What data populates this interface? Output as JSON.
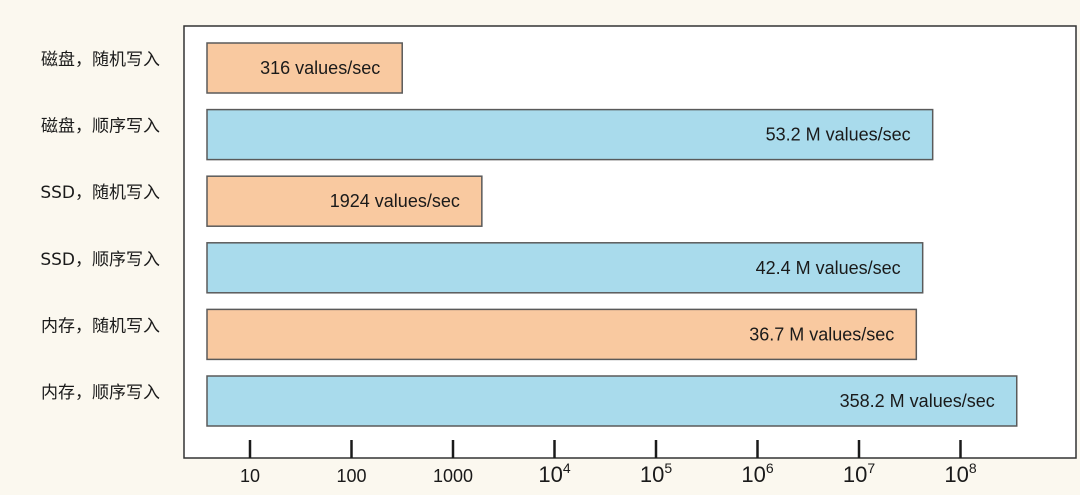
{
  "chart_data": {
    "type": "bar",
    "orientation": "horizontal",
    "x_scale": "log",
    "categories": [
      "磁盘，随机写入",
      "磁盘，顺序写入",
      "SSD，随机写入",
      "SSD，顺序写入",
      "内存，随机写入",
      "内存，顺序写入"
    ],
    "values": [
      316,
      53200000,
      1924,
      42400000,
      36700000,
      358200000
    ],
    "value_labels": [
      "316 values/sec",
      "53.2 M values/sec",
      "1924 values/sec",
      "42.4 M values/sec",
      "36.7 M values/sec",
      "358.2 M values/sec"
    ],
    "bar_colors": [
      "#f9c9a0",
      "#a9dbec",
      "#f9c9a0",
      "#a9dbec",
      "#f9c9a0",
      "#a9dbec"
    ],
    "bar_stroke": "#5a5a5a",
    "xticks": [
      {
        "value": 10,
        "base": "10",
        "exp": ""
      },
      {
        "value": 100,
        "base": "100",
        "exp": ""
      },
      {
        "value": 1000,
        "base": "1000",
        "exp": ""
      },
      {
        "value": 10000,
        "base": "10",
        "exp": "4"
      },
      {
        "value": 100000,
        "base": "10",
        "exp": "5"
      },
      {
        "value": 1000000,
        "base": "10",
        "exp": "6"
      },
      {
        "value": 10000000,
        "base": "10",
        "exp": "7"
      },
      {
        "value": 100000000,
        "base": "10",
        "exp": "8"
      }
    ],
    "title": "",
    "xlabel": "",
    "ylabel": "",
    "grid": false,
    "legend": "none"
  }
}
